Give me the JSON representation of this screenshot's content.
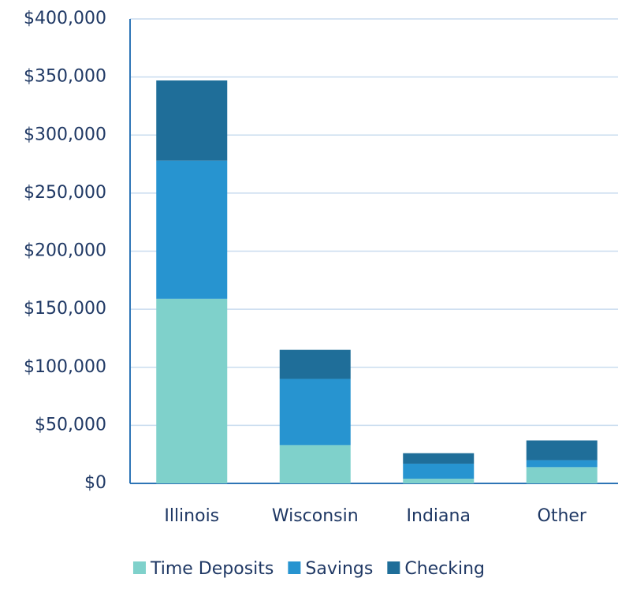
{
  "chart_data": {
    "type": "stacked_bar",
    "categories": [
      "Illinois",
      "Wisconsin",
      "Indiana",
      "Other"
    ],
    "series": [
      {
        "name": "Time Deposits",
        "color": "#7fd1cb",
        "values": [
          159000,
          33000,
          4000,
          14000
        ]
      },
      {
        "name": "Savings",
        "color": "#2794d0",
        "values": [
          119000,
          57000,
          13000,
          6000
        ]
      },
      {
        "name": "Checking",
        "color": "#1f6e99",
        "values": [
          69000,
          25000,
          9000,
          17000
        ]
      }
    ],
    "ylim": [
      0,
      400000
    ],
    "yticks": [
      {
        "value": 0,
        "label": "$0"
      },
      {
        "value": 50000,
        "label": "$50,000"
      },
      {
        "value": 100000,
        "label": "$100,000"
      },
      {
        "value": 150000,
        "label": "$150,000"
      },
      {
        "value": 200000,
        "label": "$200,000"
      },
      {
        "value": 250000,
        "label": "$250,000"
      },
      {
        "value": 300000,
        "label": "$300,000"
      },
      {
        "value": 350000,
        "label": "$350,000"
      },
      {
        "value": 400000,
        "label": "$400,000"
      }
    ],
    "grid": true,
    "legend": "bottom"
  }
}
